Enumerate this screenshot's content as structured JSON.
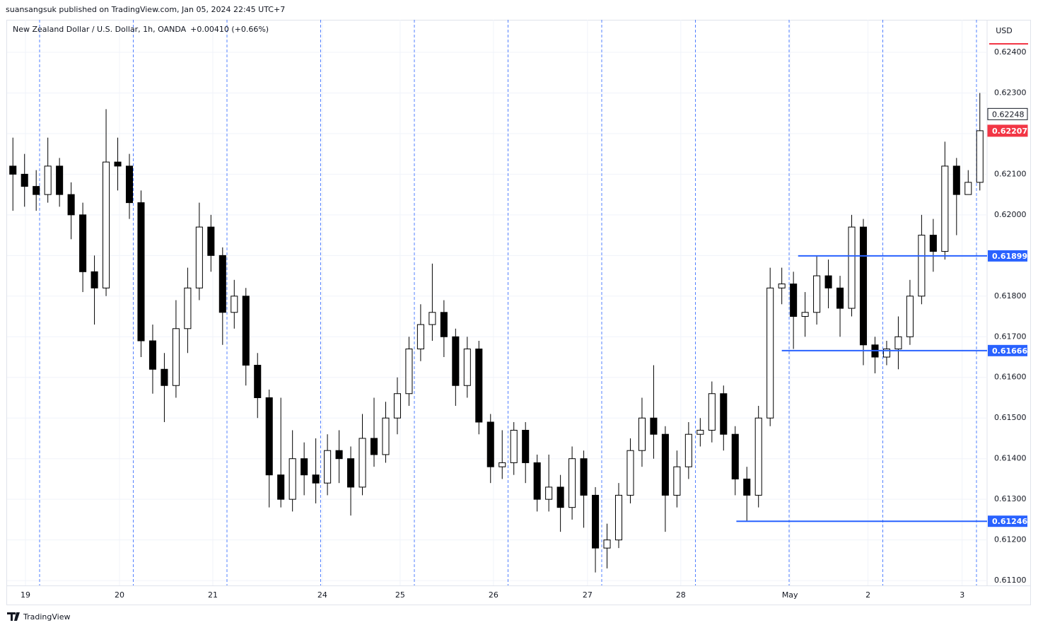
{
  "header": {
    "publisher": "suansangsuk published on TradingView.com, Jan 05, 2024 22:45 UTC+7",
    "brand": "TradingView"
  },
  "chart_data": {
    "type": "candlestick",
    "title": "New Zealand Dollar / U.S. Dollar, 1h, OANDA",
    "change": "+0.00410 (+0.66%)",
    "currency": "USD",
    "open": [
      0.6212,
      0.621,
      0.6207,
      0.6205,
      0.6212,
      0.6205,
      0.62,
      0.6186,
      0.6182,
      0.6213,
      0.6212,
      0.6203,
      0.6169,
      0.6162,
      0.6158,
      0.6172,
      0.6182,
      0.6197,
      0.619,
      0.6176,
      0.618,
      0.6163,
      0.6155,
      0.6136,
      0.613,
      0.614,
      0.6136,
      0.6134,
      0.6142,
      0.614,
      0.6133,
      0.6145,
      0.6141,
      0.615,
      0.6156,
      0.6167,
      0.6173,
      0.6176,
      0.617,
      0.6158,
      0.6167,
      0.6149,
      0.6138,
      0.6139,
      0.6147,
      0.6139,
      0.613,
      0.6133,
      0.6128,
      0.614,
      0.6131,
      0.6118,
      0.612,
      0.6131,
      0.6142,
      0.615,
      0.6146,
      0.6131,
      0.6138,
      0.6146,
      0.6147,
      0.6156,
      0.6146,
      0.6135,
      0.6131,
      0.615,
      0.6182,
      0.6183,
      0.6175,
      0.6176,
      0.6185,
      0.6182,
      0.6177,
      0.6197,
      0.6168,
      0.6165,
      0.6167,
      0.617,
      0.618,
      0.6195,
      0.6191,
      0.6212,
      0.6205,
      0.6208
    ],
    "high": [
      0.6219,
      0.6215,
      0.6211,
      0.6219,
      0.6214,
      0.6208,
      0.6203,
      0.619,
      0.6226,
      0.6219,
      0.6215,
      0.6206,
      0.6173,
      0.6166,
      0.6179,
      0.6187,
      0.6203,
      0.62,
      0.6192,
      0.6184,
      0.6182,
      0.6166,
      0.6157,
      0.6155,
      0.6147,
      0.6144,
      0.6145,
      0.6146,
      0.6147,
      0.6143,
      0.6151,
      0.6155,
      0.6154,
      0.616,
      0.617,
      0.6178,
      0.6188,
      0.6179,
      0.6172,
      0.617,
      0.6169,
      0.6151,
      0.6147,
      0.6149,
      0.6149,
      0.6141,
      0.6141,
      0.6136,
      0.6143,
      0.6142,
      0.6133,
      0.6124,
      0.6134,
      0.6145,
      0.6155,
      0.6163,
      0.6148,
      0.6142,
      0.6149,
      0.615,
      0.6159,
      0.6158,
      0.6148,
      0.6138,
      0.6153,
      0.6187,
      0.6187,
      0.6186,
      0.6181,
      0.619,
      0.6189,
      0.6185,
      0.62,
      0.6199,
      0.617,
      0.6169,
      0.6175,
      0.6184,
      0.62,
      0.6199,
      0.6218,
      0.6214,
      0.6211,
      0.623
    ],
    "low": [
      0.6201,
      0.6202,
      0.6201,
      0.6203,
      0.6202,
      0.6194,
      0.6181,
      0.6173,
      0.618,
      0.6206,
      0.6199,
      0.6165,
      0.6156,
      0.6149,
      0.6155,
      0.6166,
      0.6179,
      0.6186,
      0.6168,
      0.6172,
      0.6158,
      0.615,
      0.6128,
      0.6128,
      0.6127,
      0.6131,
      0.6129,
      0.6131,
      0.6134,
      0.6126,
      0.6131,
      0.6138,
      0.6139,
      0.6146,
      0.6153,
      0.6164,
      0.6169,
      0.6165,
      0.6153,
      0.6155,
      0.6146,
      0.6134,
      0.6135,
      0.6136,
      0.6134,
      0.6127,
      0.6127,
      0.6122,
      0.6125,
      0.6123,
      0.6112,
      0.6113,
      0.6118,
      0.6129,
      0.6138,
      0.614,
      0.6122,
      0.6128,
      0.6135,
      0.6143,
      0.6144,
      0.6142,
      0.6131,
      0.61246,
      0.6128,
      0.6148,
      0.6178,
      0.6167,
      0.617,
      0.6173,
      0.6177,
      0.617,
      0.6175,
      0.6163,
      0.6161,
      0.6163,
      0.6162,
      0.6168,
      0.6178,
      0.6186,
      0.6189,
      0.6195,
      0.6205,
      0.6206
    ],
    "close": [
      0.621,
      0.6207,
      0.6205,
      0.6212,
      0.6205,
      0.62,
      0.6186,
      0.6182,
      0.6213,
      0.6212,
      0.6203,
      0.6169,
      0.6162,
      0.6158,
      0.6172,
      0.6182,
      0.6197,
      0.619,
      0.6176,
      0.618,
      0.6163,
      0.6155,
      0.6136,
      0.613,
      0.614,
      0.6136,
      0.6134,
      0.6142,
      0.614,
      0.6133,
      0.6145,
      0.6141,
      0.615,
      0.6156,
      0.6167,
      0.6173,
      0.6176,
      0.617,
      0.6158,
      0.6167,
      0.6149,
      0.6138,
      0.6139,
      0.6147,
      0.6139,
      0.613,
      0.6133,
      0.6128,
      0.614,
      0.6131,
      0.6118,
      0.612,
      0.6131,
      0.6142,
      0.615,
      0.6146,
      0.6131,
      0.6138,
      0.6146,
      0.6147,
      0.6156,
      0.6146,
      0.6135,
      0.6131,
      0.615,
      0.6182,
      0.6183,
      0.6175,
      0.6176,
      0.6185,
      0.6182,
      0.6177,
      0.6197,
      0.6168,
      0.6165,
      0.6167,
      0.617,
      0.618,
      0.6195,
      0.6191,
      0.6212,
      0.6205,
      0.6208,
      0.62207
    ],
    "xlim": [
      0,
      84
    ],
    "xticks": [
      {
        "value": 1.58,
        "label": "19"
      },
      {
        "value": 9.65,
        "label": "20"
      },
      {
        "value": 17.66,
        "label": "21"
      },
      {
        "value": 27.06,
        "label": "24"
      },
      {
        "value": 33.74,
        "label": "25"
      },
      {
        "value": 41.75,
        "label": "26"
      },
      {
        "value": 49.82,
        "label": "27"
      },
      {
        "value": 57.83,
        "label": "28"
      },
      {
        "value": 67.2,
        "label": "May"
      },
      {
        "value": 73.9,
        "label": "2"
      },
      {
        "value": 81.98,
        "label": "3"
      }
    ],
    "ylim": [
      0.61088,
      0.6248
    ],
    "yticks": [
      {
        "value": 0.611,
        "label": "0.61100"
      },
      {
        "value": 0.612,
        "label": "0.61200"
      },
      {
        "value": 0.613,
        "label": "0.61300"
      },
      {
        "value": 0.614,
        "label": "0.61400"
      },
      {
        "value": 0.615,
        "label": "0.61500"
      },
      {
        "value": 0.616,
        "label": "0.61600"
      },
      {
        "value": 0.617,
        "label": "0.61700"
      },
      {
        "value": 0.618,
        "label": "0.61800"
      },
      {
        "value": 0.619,
        "label": "0.61900"
      },
      {
        "value": 0.62,
        "label": "0.62000"
      },
      {
        "value": 0.621,
        "label": "0.62100"
      },
      {
        "value": 0.622,
        "label": "0.62200"
      },
      {
        "value": 0.623,
        "label": "0.62300"
      },
      {
        "value": 0.624,
        "label": "0.62400"
      }
    ],
    "grid": true,
    "up_color": "#ffffff",
    "down_color": "#000000",
    "line_color": "#2962ff",
    "last_color": "#f23645",
    "hlines": [
      {
        "value": 0.61899,
        "x_start": 67.9
      },
      {
        "value": 0.61666,
        "x_start": 66.5
      },
      {
        "value": 0.61246,
        "x_start": 62.6
      }
    ],
    "markers": [
      {
        "value": 0.62248,
        "style": "outline"
      },
      {
        "value": 0.62207,
        "style": "last"
      }
    ]
  }
}
